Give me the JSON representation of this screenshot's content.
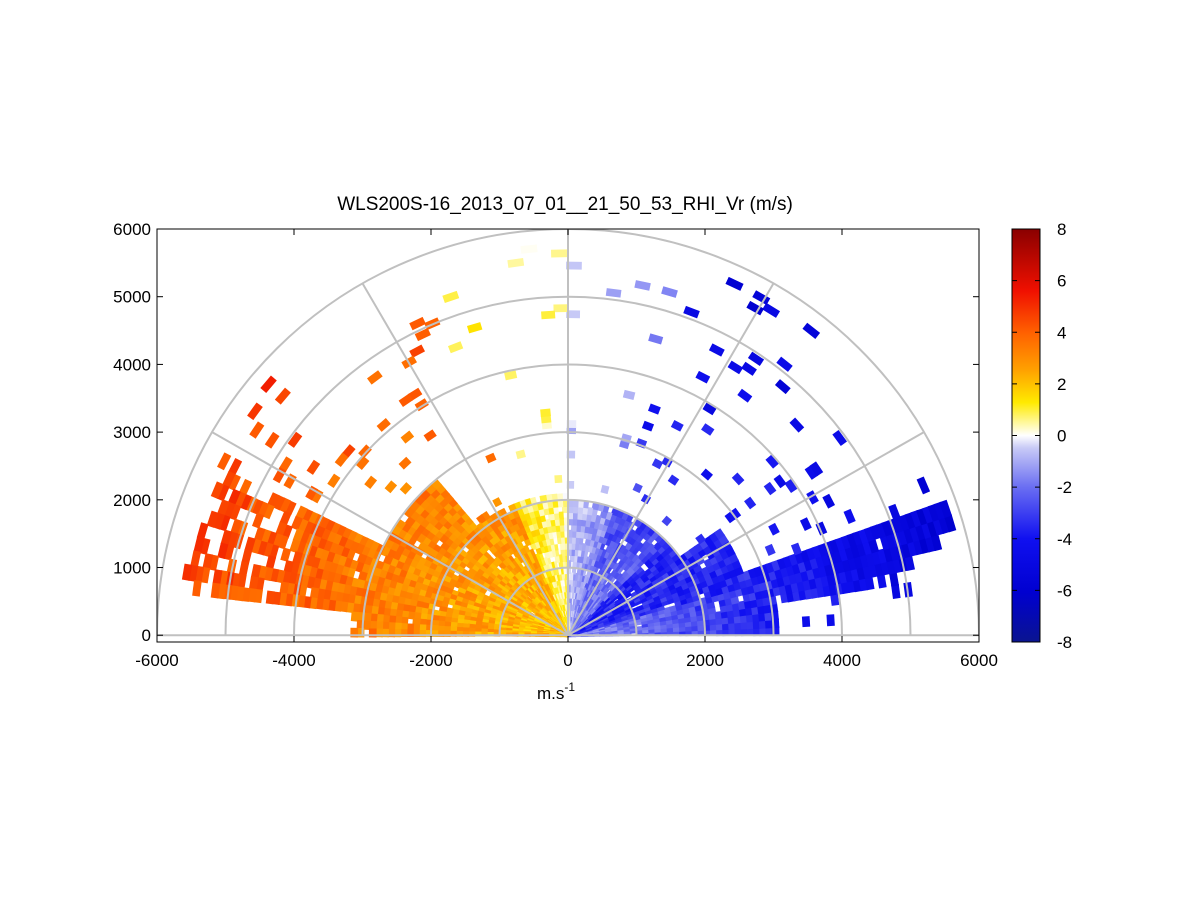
{
  "chart_data": {
    "type": "heatmap",
    "subtype": "polar RHI (range-height indicator) radial velocity scan",
    "title": "WLS200S-16_2013_07_01__21_50_53_RHI_Vr (m/s)",
    "xlabel_base": "m.s",
    "xlabel_exponent": "-1",
    "ylabel": "",
    "xlim": [
      -6000,
      6000
    ],
    "ylim": [
      -100,
      6000
    ],
    "x_ticks": [
      -6000,
      -4000,
      -2000,
      0,
      2000,
      4000,
      6000
    ],
    "y_ticks": [
      0,
      1000,
      2000,
      3000,
      4000,
      5000,
      6000
    ],
    "polar_grid": {
      "range_rings": [
        1000,
        2000,
        3000,
        4000,
        5000,
        6000
      ],
      "radial_lines_deg": [
        30,
        60,
        90,
        120,
        150
      ],
      "grid_color": "#c0c0c0"
    },
    "colorbar": {
      "min": -8,
      "max": 8,
      "ticks": [
        8,
        6,
        4,
        2,
        0,
        -2,
        -4,
        -6,
        -8
      ],
      "colormap": "diverging: dark red - red - orange - yellow - white (0) - light blue - blue - dark blue"
    },
    "sectors": [
      {
        "direction": "left side (azimuth ~90°-180°)",
        "sign": "positive",
        "value_range": [
          0,
          5
        ],
        "typical_value": 3,
        "far_value": 4.5,
        "extent_m": 5800,
        "elev_range_deg": [
          5,
          30
        ]
      },
      {
        "direction": "near vertical, left of 0",
        "sign": "positive",
        "value_range": [
          0,
          1.5
        ],
        "typical_value": 1
      },
      {
        "direction": "near vertical, right of 0",
        "sign": "negative",
        "value_range": [
          -2,
          0
        ],
        "typical_value": -1
      },
      {
        "direction": "right side (azimuth ~0°-90°)",
        "sign": "negative",
        "value_range": [
          -5.5,
          -2
        ],
        "typical_value": -4.5,
        "extent_m": 5900,
        "elev_range_deg": [
          2,
          35
        ]
      }
    ],
    "grid": "off (only polar range rings and radials)",
    "legend": "colorbar right"
  }
}
